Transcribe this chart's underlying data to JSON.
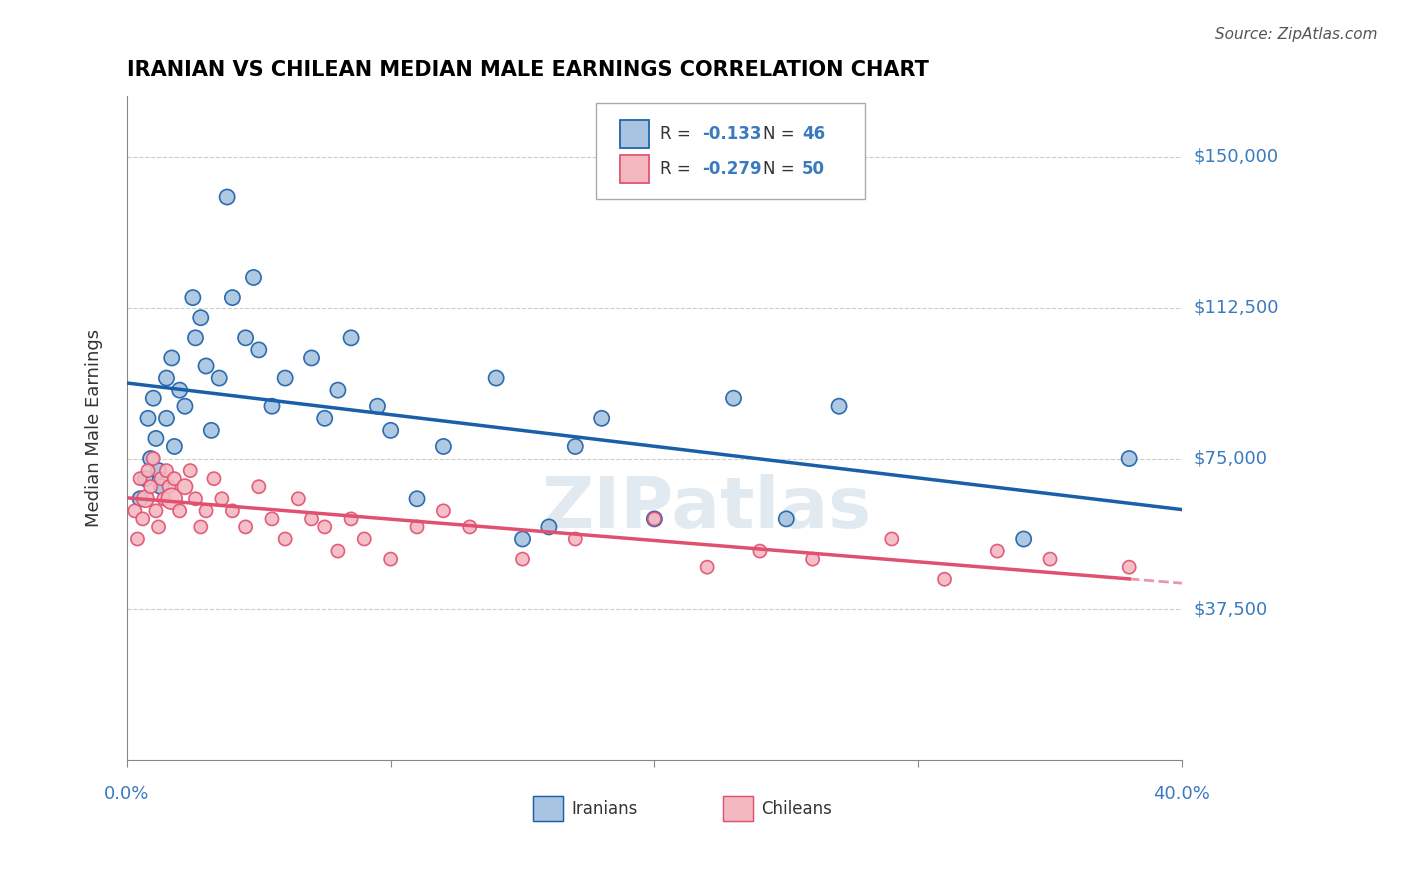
{
  "title": "IRANIAN VS CHILEAN MEDIAN MALE EARNINGS CORRELATION CHART",
  "source": "Source: ZipAtlas.com",
  "ylabel": "Median Male Earnings",
  "ytick_labels": [
    "$37,500",
    "$75,000",
    "$112,500",
    "$150,000"
  ],
  "ytick_values": [
    37500,
    75000,
    112500,
    150000
  ],
  "xmin": 0.0,
  "xmax": 0.4,
  "ymin": 0,
  "ymax": 165000,
  "iranian_color": "#a8c4e0",
  "chilean_color": "#f4b8c1",
  "iranian_line_color": "#1a5fa8",
  "chilean_line_color": "#e05070",
  "legend_color": "#3a7abf",
  "background_color": "#ffffff",
  "watermark_color": "#d0dce8",
  "grid_color": "#cccccc",
  "axis_label_color": "#3a7abf",
  "title_color": "#000000",
  "iranians_x": [
    0.005,
    0.007,
    0.008,
    0.009,
    0.01,
    0.011,
    0.012,
    0.013,
    0.015,
    0.015,
    0.017,
    0.018,
    0.02,
    0.022,
    0.025,
    0.026,
    0.028,
    0.03,
    0.032,
    0.035,
    0.038,
    0.04,
    0.045,
    0.048,
    0.05,
    0.055,
    0.06,
    0.07,
    0.075,
    0.08,
    0.085,
    0.095,
    0.1,
    0.11,
    0.12,
    0.14,
    0.15,
    0.16,
    0.17,
    0.18,
    0.2,
    0.23,
    0.25,
    0.27,
    0.34,
    0.38
  ],
  "iranians_y": [
    65000,
    70000,
    85000,
    75000,
    90000,
    80000,
    72000,
    68000,
    95000,
    85000,
    100000,
    78000,
    92000,
    88000,
    115000,
    105000,
    110000,
    98000,
    82000,
    95000,
    140000,
    115000,
    105000,
    120000,
    102000,
    88000,
    95000,
    100000,
    85000,
    92000,
    105000,
    88000,
    82000,
    65000,
    78000,
    95000,
    55000,
    58000,
    78000,
    85000,
    60000,
    90000,
    60000,
    88000,
    55000,
    75000
  ],
  "iranians_size": [
    80,
    80,
    80,
    80,
    80,
    80,
    80,
    80,
    80,
    80,
    80,
    80,
    80,
    80,
    80,
    80,
    80,
    80,
    80,
    80,
    80,
    80,
    80,
    80,
    80,
    80,
    80,
    80,
    80,
    80,
    80,
    80,
    80,
    80,
    80,
    80,
    80,
    80,
    80,
    80,
    80,
    80,
    80,
    80,
    80,
    80
  ],
  "chileans_x": [
    0.003,
    0.004,
    0.005,
    0.006,
    0.007,
    0.008,
    0.009,
    0.01,
    0.011,
    0.012,
    0.013,
    0.014,
    0.015,
    0.016,
    0.017,
    0.018,
    0.02,
    0.022,
    0.024,
    0.026,
    0.028,
    0.03,
    0.033,
    0.036,
    0.04,
    0.045,
    0.05,
    0.055,
    0.06,
    0.065,
    0.07,
    0.075,
    0.08,
    0.085,
    0.09,
    0.1,
    0.11,
    0.12,
    0.13,
    0.15,
    0.17,
    0.2,
    0.22,
    0.24,
    0.26,
    0.29,
    0.31,
    0.33,
    0.35,
    0.38
  ],
  "chileans_y": [
    62000,
    55000,
    70000,
    60000,
    65000,
    72000,
    68000,
    75000,
    62000,
    58000,
    70000,
    65000,
    72000,
    68000,
    65000,
    70000,
    62000,
    68000,
    72000,
    65000,
    58000,
    62000,
    70000,
    65000,
    62000,
    58000,
    68000,
    60000,
    55000,
    65000,
    60000,
    58000,
    52000,
    60000,
    55000,
    50000,
    58000,
    62000,
    58000,
    50000,
    55000,
    60000,
    48000,
    52000,
    50000,
    55000,
    45000,
    52000,
    50000,
    48000
  ],
  "chileans_size": [
    60,
    60,
    60,
    60,
    100,
    60,
    60,
    60,
    60,
    60,
    60,
    60,
    60,
    60,
    150,
    60,
    60,
    80,
    60,
    60,
    60,
    60,
    60,
    60,
    60,
    60,
    60,
    60,
    60,
    60,
    60,
    60,
    60,
    60,
    60,
    60,
    60,
    60,
    60,
    60,
    60,
    60,
    60,
    60,
    60,
    60,
    60,
    60,
    60,
    60
  ]
}
